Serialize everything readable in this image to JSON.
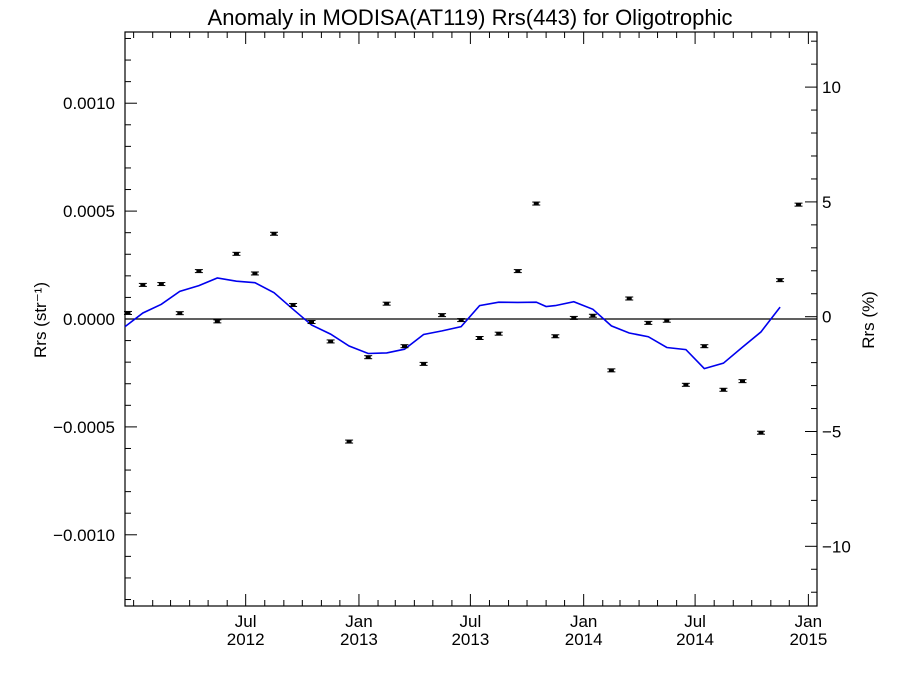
{
  "chart_data": {
    "type": "scatter",
    "title": "Anomaly in MODISA(AT119) Rrs(443) for Oligotrophic",
    "ylabel_left": "Rrs (str⁻¹)",
    "ylabel_right": "Rrs (%)",
    "x_axis": {
      "type": "date",
      "range": [
        "2011-12-18",
        "2015-01-15"
      ],
      "major_ticks": [
        {
          "date": "2012-07-01",
          "month": "Jul",
          "year": "2012"
        },
        {
          "date": "2013-01-01",
          "month": "Jan",
          "year": "2013"
        },
        {
          "date": "2013-07-01",
          "month": "Jul",
          "year": "2013"
        },
        {
          "date": "2014-01-01",
          "month": "Jan",
          "year": "2014"
        },
        {
          "date": "2014-07-01",
          "month": "Jul",
          "year": "2014"
        },
        {
          "date": "2015-01-01",
          "month": "Jan",
          "year": "2015"
        }
      ]
    },
    "y_axis_left": {
      "range": [
        -0.00133,
        0.00133
      ],
      "ticks": [
        {
          "value": 0.001,
          "label": "0.0010"
        },
        {
          "value": 0.0005,
          "label": "0.0005"
        },
        {
          "value": 0.0,
          "label": "0.0000"
        },
        {
          "value": -0.0005,
          "label": "−0.0005"
        },
        {
          "value": -0.001,
          "label": "−0.0010"
        }
      ]
    },
    "y_axis_right": {
      "range": [
        -12.6,
        12.4
      ],
      "ticks": [
        {
          "value": 10,
          "label": "10"
        },
        {
          "value": 5,
          "label": "5"
        },
        {
          "value": 0,
          "label": "0"
        },
        {
          "value": -5,
          "label": "−5"
        },
        {
          "value": -10,
          "label": "−10"
        }
      ]
    },
    "series": [
      {
        "kind": "points_with_error_bars",
        "color": "#000000",
        "points": [
          {
            "x": "2011-12-16",
            "y": 2.8e-05
          },
          {
            "x": "2012-01-16",
            "y": 0.000158
          },
          {
            "x": "2012-02-15",
            "y": 0.000162
          },
          {
            "x": "2012-03-16",
            "y": 2.7e-05
          },
          {
            "x": "2012-04-16",
            "y": 0.000222
          },
          {
            "x": "2012-05-16",
            "y": -1.1e-05
          },
          {
            "x": "2012-06-16",
            "y": 0.000302
          },
          {
            "x": "2012-07-16",
            "y": 0.000211
          },
          {
            "x": "2012-08-16",
            "y": 0.000395
          },
          {
            "x": "2012-09-16",
            "y": 6.5e-05
          },
          {
            "x": "2012-10-16",
            "y": -1.4e-05
          },
          {
            "x": "2012-11-16",
            "y": -0.000104
          },
          {
            "x": "2012-12-16",
            "y": -0.000568
          },
          {
            "x": "2013-01-16",
            "y": -0.000177
          },
          {
            "x": "2013-02-15",
            "y": 7.1e-05
          },
          {
            "x": "2013-03-16",
            "y": -0.000126
          },
          {
            "x": "2013-04-16",
            "y": -0.000208
          },
          {
            "x": "2013-05-16",
            "y": 1.8e-05
          },
          {
            "x": "2013-06-16",
            "y": -5e-06
          },
          {
            "x": "2013-07-16",
            "y": -8.8e-05
          },
          {
            "x": "2013-08-16",
            "y": -6.8e-05
          },
          {
            "x": "2013-09-16",
            "y": 0.000222
          },
          {
            "x": "2013-10-16",
            "y": 0.000535
          },
          {
            "x": "2013-11-16",
            "y": -8e-05
          },
          {
            "x": "2013-12-16",
            "y": 5e-06
          },
          {
            "x": "2014-01-16",
            "y": 1.5e-05
          },
          {
            "x": "2014-02-15",
            "y": -0.000238
          },
          {
            "x": "2014-03-16",
            "y": 9.5e-05
          },
          {
            "x": "2014-04-16",
            "y": -1.8e-05
          },
          {
            "x": "2014-05-16",
            "y": -8e-06
          },
          {
            "x": "2014-06-16",
            "y": -0.000305
          },
          {
            "x": "2014-07-16",
            "y": -0.000126
          },
          {
            "x": "2014-08-16",
            "y": -0.000328
          },
          {
            "x": "2014-09-16",
            "y": -0.000288
          },
          {
            "x": "2014-10-16",
            "y": -0.000527
          },
          {
            "x": "2014-11-16",
            "y": 0.00018
          },
          {
            "x": "2014-12-16",
            "y": 0.00053
          }
        ]
      },
      {
        "kind": "line",
        "color": "#0000ee",
        "points": [
          {
            "x": "2011-12-18",
            "y": -3.5e-05
          },
          {
            "x": "2012-01-16",
            "y": 2.8e-05
          },
          {
            "x": "2012-02-15",
            "y": 6.8e-05
          },
          {
            "x": "2012-03-16",
            "y": 0.000128
          },
          {
            "x": "2012-04-16",
            "y": 0.000155
          },
          {
            "x": "2012-05-16",
            "y": 0.00019
          },
          {
            "x": "2012-06-16",
            "y": 0.000175
          },
          {
            "x": "2012-07-16",
            "y": 0.000168
          },
          {
            "x": "2012-08-16",
            "y": 0.000122
          },
          {
            "x": "2012-09-16",
            "y": 4.5e-05
          },
          {
            "x": "2012-10-16",
            "y": -2.8e-05
          },
          {
            "x": "2012-11-16",
            "y": -7e-05
          },
          {
            "x": "2012-12-16",
            "y": -0.000125
          },
          {
            "x": "2013-01-16",
            "y": -0.00016
          },
          {
            "x": "2013-02-15",
            "y": -0.000157
          },
          {
            "x": "2013-03-16",
            "y": -0.00014
          },
          {
            "x": "2013-04-16",
            "y": -7.2e-05
          },
          {
            "x": "2013-05-16",
            "y": -5.5e-05
          },
          {
            "x": "2013-06-16",
            "y": -3.5e-05
          },
          {
            "x": "2013-07-16",
            "y": 6.2e-05
          },
          {
            "x": "2013-08-16",
            "y": 7.8e-05
          },
          {
            "x": "2013-09-16",
            "y": 7.7e-05
          },
          {
            "x": "2013-10-16",
            "y": 7.8e-05
          },
          {
            "x": "2013-11-01",
            "y": 5.8e-05
          },
          {
            "x": "2013-11-16",
            "y": 6.2e-05
          },
          {
            "x": "2013-12-16",
            "y": 8e-05
          },
          {
            "x": "2014-01-16",
            "y": 4.5e-05
          },
          {
            "x": "2014-02-15",
            "y": -3.2e-05
          },
          {
            "x": "2014-03-16",
            "y": -6.5e-05
          },
          {
            "x": "2014-04-16",
            "y": -8.2e-05
          },
          {
            "x": "2014-05-16",
            "y": -0.000132
          },
          {
            "x": "2014-06-16",
            "y": -0.000142
          },
          {
            "x": "2014-07-16",
            "y": -0.00023
          },
          {
            "x": "2014-08-16",
            "y": -0.000205
          },
          {
            "x": "2014-09-16",
            "y": -0.00013
          },
          {
            "x": "2014-10-16",
            "y": -6e-05
          },
          {
            "x": "2014-11-16",
            "y": 5.5e-05
          }
        ]
      }
    ],
    "zero_line": true,
    "grid": false,
    "legend": "none"
  }
}
